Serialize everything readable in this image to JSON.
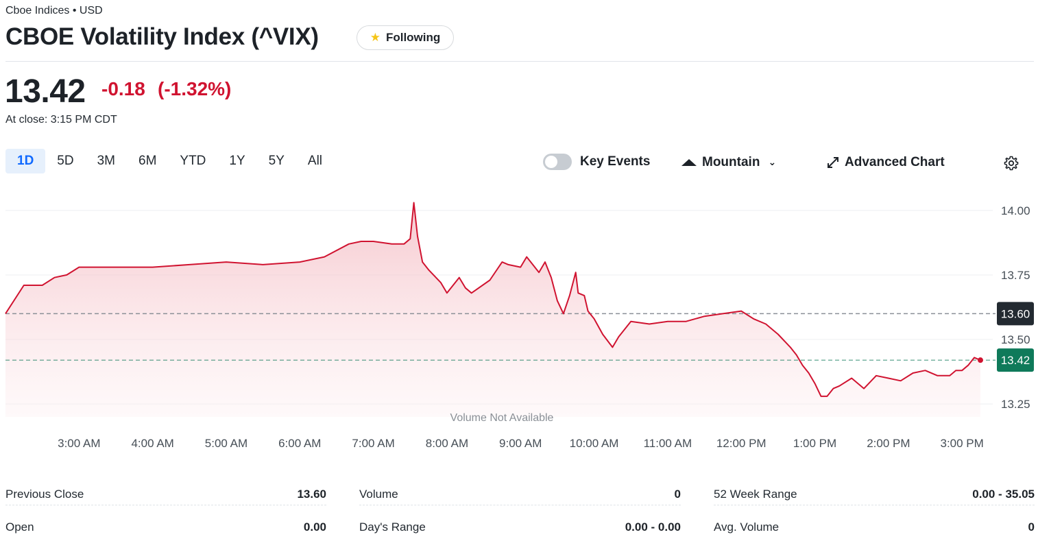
{
  "header": {
    "subtitle": "Cboe Indices • USD",
    "title": "CBOE Volatility Index (^VIX)",
    "follow_label": "Following"
  },
  "quote": {
    "price": "13.42",
    "change": "-0.18",
    "change_pct": "(-1.32%)",
    "close_note": "At close: 3:15 PM CDT"
  },
  "ranges": [
    "1D",
    "5D",
    "3M",
    "6M",
    "YTD",
    "1Y",
    "5Y",
    "All"
  ],
  "active_range": "1D",
  "controls": {
    "key_events": "Key Events",
    "chart_type": "Mountain",
    "advanced": "Advanced Chart"
  },
  "colors": {
    "line": "#d01330",
    "fill": "#f7d3d7",
    "prev_close_badge": "#232a31",
    "current_badge": "#0f7a5a",
    "negative": "#d01330"
  },
  "chart_data": {
    "type": "area",
    "ylim": [
      13.2,
      14.05
    ],
    "yticks": [
      "14.00",
      "13.75",
      "13.50",
      "13.25"
    ],
    "xticks": [
      "3:00 AM",
      "4:00 AM",
      "5:00 AM",
      "6:00 AM",
      "7:00 AM",
      "8:00 AM",
      "9:00 AM",
      "10:00 AM",
      "11:00 AM",
      "12:00 PM",
      "1:00 PM",
      "2:00 PM",
      "3:00 PM"
    ],
    "xdomain": [
      "2:00 AM",
      "3:15 PM"
    ],
    "previous_close": 13.6,
    "previous_close_label": "13.60",
    "current": 13.42,
    "current_label": "13.42",
    "volume_note": "Volume Not Available",
    "series": [
      {
        "x": [
          "2:00 AM",
          "2:15 AM",
          "2:30 AM",
          "2:40 AM",
          "2:50 AM",
          "3:00 AM",
          "3:20 AM",
          "3:45 AM",
          "4:00 AM",
          "4:30 AM",
          "5:00 AM",
          "5:30 AM",
          "6:00 AM",
          "6:20 AM",
          "6:40 AM",
          "6:50 AM",
          "7:00 AM",
          "7:15 AM",
          "7:25 AM",
          "7:30 AM",
          "7:33 AM",
          "7:36 AM",
          "7:40 AM",
          "7:45 AM",
          "7:55 AM",
          "8:00 AM",
          "8:10 AM",
          "8:15 AM",
          "8:20 AM",
          "8:35 AM",
          "8:45 AM",
          "8:50 AM",
          "9:00 AM",
          "9:05 AM",
          "9:15 AM",
          "9:20 AM",
          "9:25 AM",
          "9:30 AM",
          "9:35 AM",
          "9:40 AM",
          "9:45 AM",
          "9:47 AM",
          "9:52 AM",
          "9:55 AM",
          "10:00 AM",
          "10:07 AM",
          "10:15 AM",
          "10:20 AM",
          "10:30 AM",
          "10:45 AM",
          "11:00 AM",
          "11:15 AM",
          "11:30 AM",
          "11:45 AM",
          "12:00 PM",
          "12:10 PM",
          "12:20 PM",
          "12:30 PM",
          "12:40 PM",
          "12:45 PM",
          "12:50 PM",
          "12:55 PM",
          "1:00 PM",
          "1:05 PM",
          "1:10 PM",
          "1:15 PM",
          "1:20 PM",
          "1:30 PM",
          "1:40 PM",
          "1:50 PM",
          "2:00 PM",
          "2:10 PM",
          "2:20 PM",
          "2:30 PM",
          "2:40 PM",
          "2:50 PM",
          "2:55 PM",
          "3:00 PM",
          "3:05 PM",
          "3:10 PM",
          "3:15 PM"
        ],
        "values": [
          13.6,
          13.71,
          13.71,
          13.74,
          13.75,
          13.78,
          13.78,
          13.78,
          13.78,
          13.79,
          13.8,
          13.79,
          13.8,
          13.82,
          13.87,
          13.88,
          13.88,
          13.87,
          13.87,
          13.89,
          14.03,
          13.9,
          13.8,
          13.77,
          13.72,
          13.68,
          13.74,
          13.7,
          13.68,
          13.73,
          13.8,
          13.79,
          13.78,
          13.82,
          13.76,
          13.8,
          13.74,
          13.65,
          13.6,
          13.67,
          13.76,
          13.68,
          13.67,
          13.61,
          13.58,
          13.52,
          13.47,
          13.51,
          13.57,
          13.56,
          13.57,
          13.57,
          13.59,
          13.6,
          13.61,
          13.58,
          13.56,
          13.52,
          13.47,
          13.44,
          13.4,
          13.37,
          13.33,
          13.28,
          13.28,
          13.31,
          13.32,
          13.35,
          13.31,
          13.36,
          13.35,
          13.34,
          13.37,
          13.38,
          13.36,
          13.36,
          13.38,
          13.38,
          13.4,
          13.43,
          13.42
        ]
      }
    ]
  },
  "stats": [
    {
      "label": "Previous Close",
      "value": "13.60"
    },
    {
      "label": "Volume",
      "value": "0"
    },
    {
      "label": "52 Week Range",
      "value": "0.00 - 35.05"
    },
    {
      "label": "Open",
      "value": "0.00"
    },
    {
      "label": "Day's Range",
      "value": "0.00 - 0.00"
    },
    {
      "label": "Avg. Volume",
      "value": "0"
    }
  ]
}
